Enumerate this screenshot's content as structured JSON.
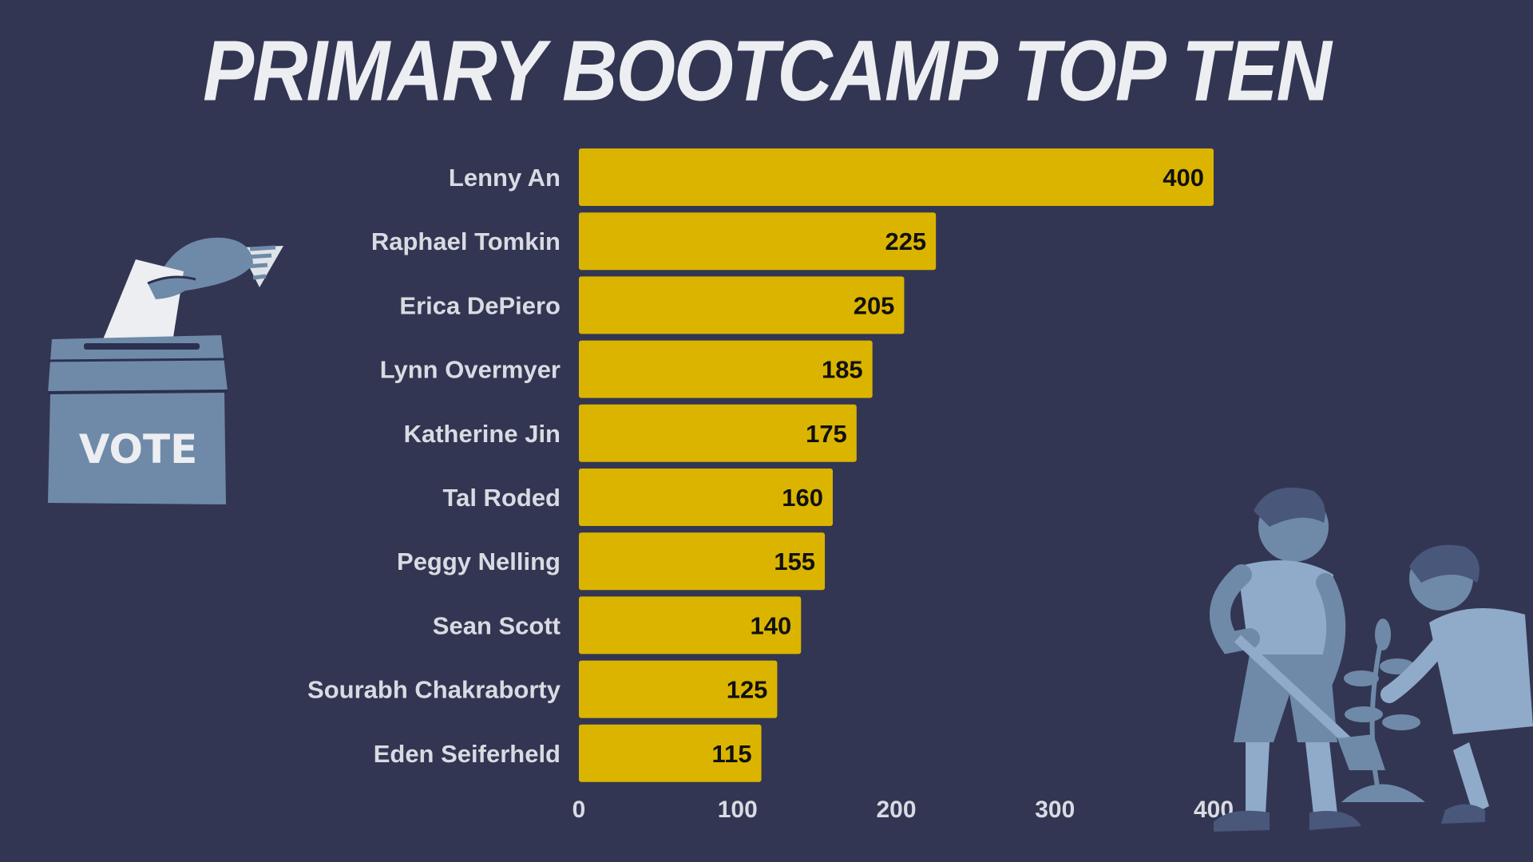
{
  "colors": {
    "background": "#333652",
    "bar": "#dbb400",
    "label": "#d9dbe3",
    "illustration": "#6f8aa8",
    "illustration_light": "#8fabc9"
  },
  "illustrations": {
    "ballot_box_text": "VOTE"
  },
  "chart_data": {
    "type": "bar",
    "orientation": "horizontal",
    "title": "PRIMARY BOOTCAMP TOP TEN",
    "categories": [
      "Lenny An",
      "Raphael Tomkin",
      "Erica DePiero",
      "Lynn Overmyer",
      "Katherine Jin",
      "Tal Roded",
      "Peggy Nelling",
      "Sean Scott",
      "Sourabh Chakraborty",
      "Eden Seiferheld"
    ],
    "values": [
      400,
      225,
      205,
      185,
      175,
      160,
      155,
      140,
      125,
      115
    ],
    "xlim": [
      0,
      400
    ],
    "x_ticks": [
      0,
      100,
      200,
      300,
      400
    ],
    "data_labels": true,
    "grid": false,
    "legend": "none"
  }
}
